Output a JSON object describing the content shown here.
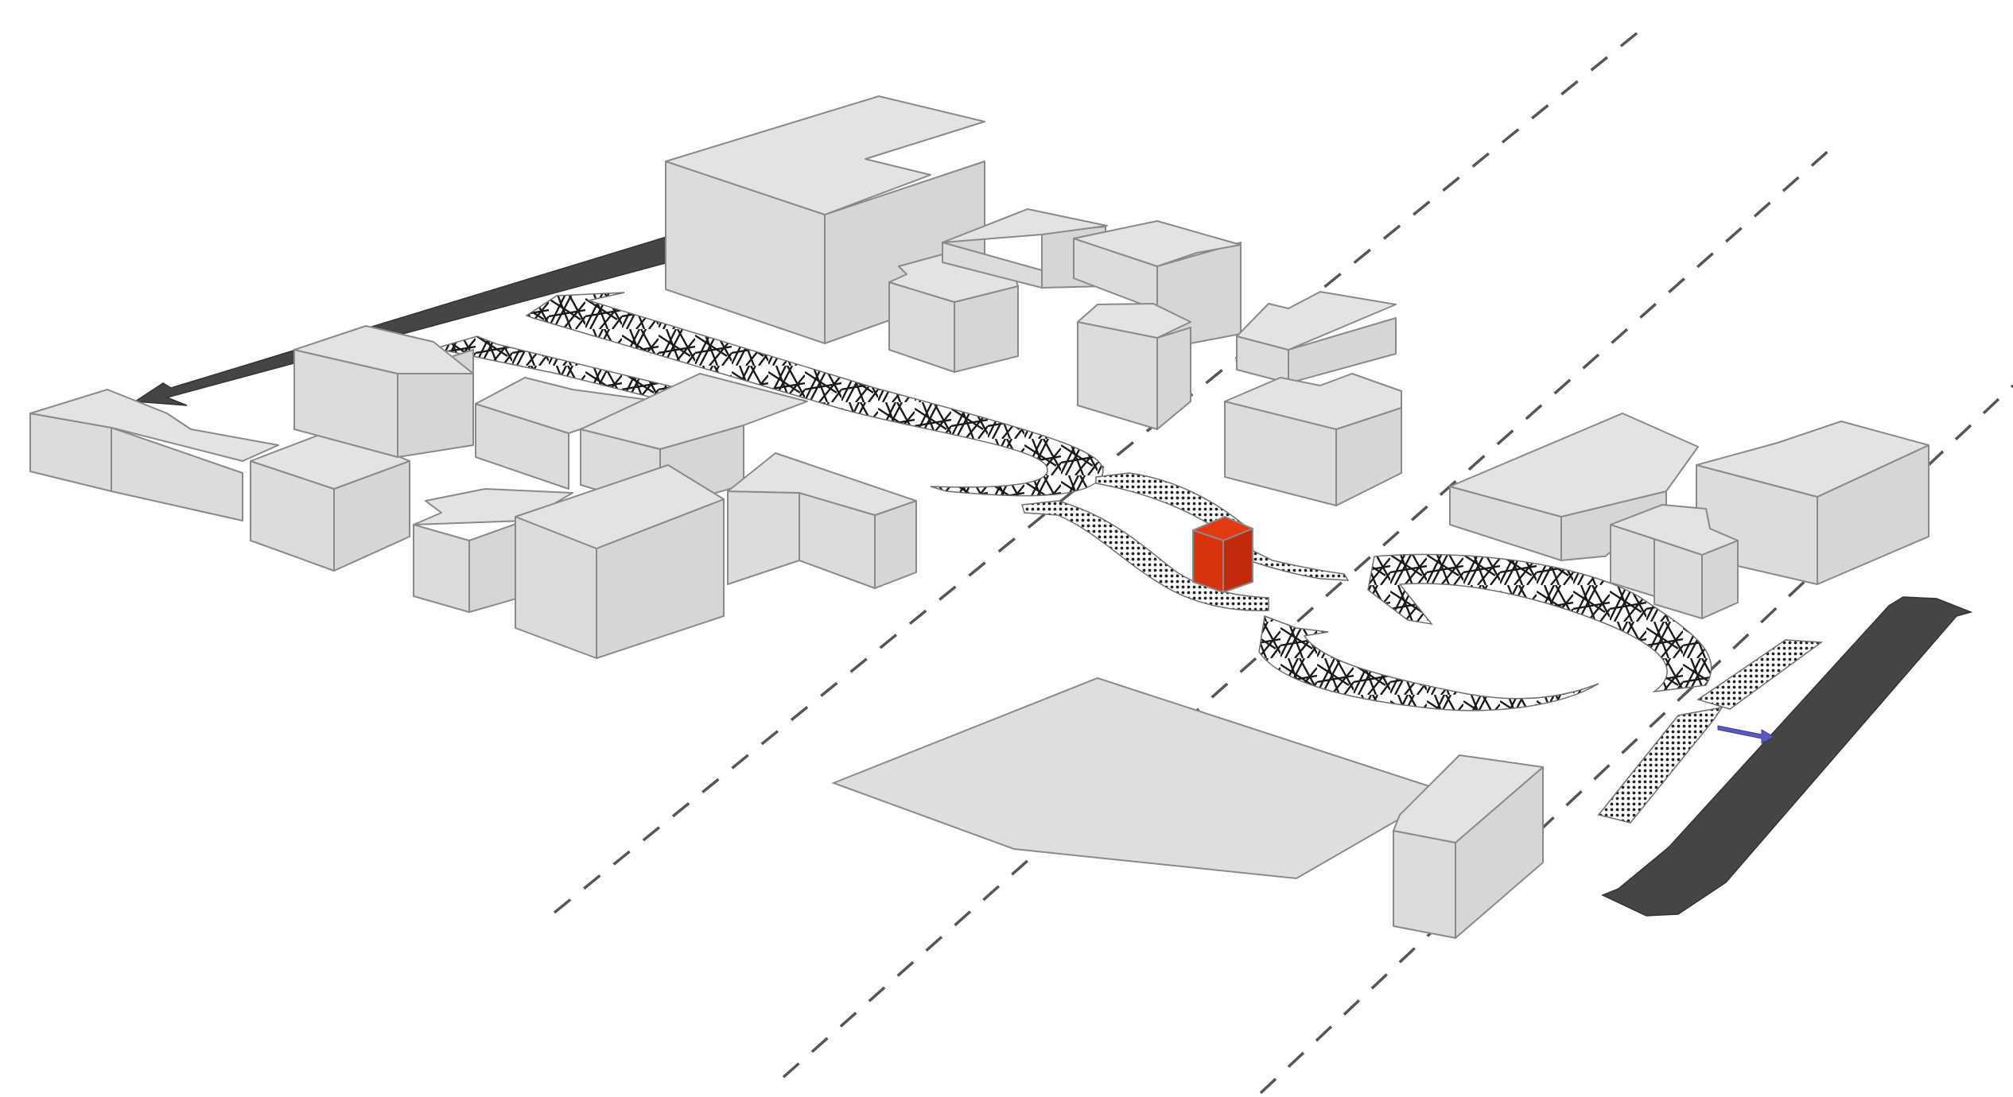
{
  "diagram": {
    "background": "#ffffff",
    "colors": {
      "building": "#dedede",
      "building_edge": "#8a8a8a",
      "focal_block": "#d9320e",
      "road_arrow": "#454545",
      "axis_line": "#555555",
      "small_arrow": "#5b5bb8"
    },
    "icons": [
      "road-arrow-icon",
      "double-arrow-icon",
      "small-arrow-icon"
    ]
  }
}
